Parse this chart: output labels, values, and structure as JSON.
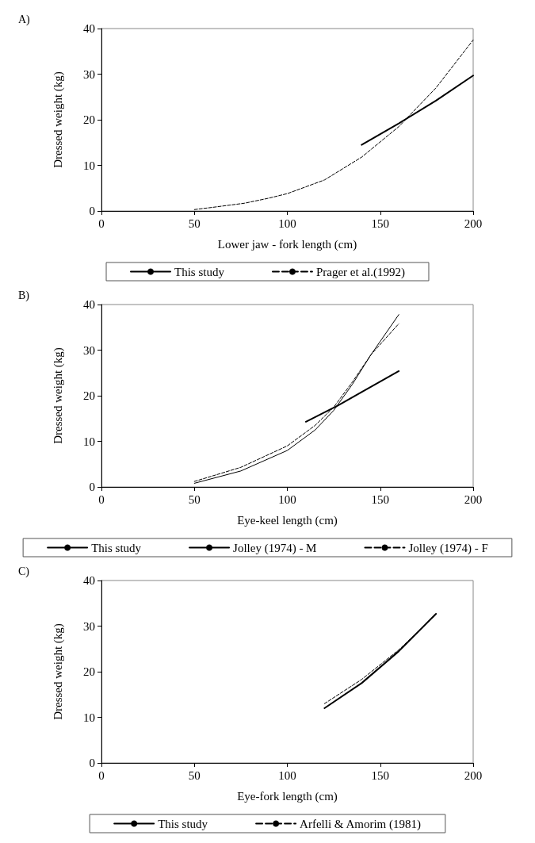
{
  "chart_data": [
    {
      "type": "line",
      "title": "A)",
      "xlabel": "Lower jaw - fork length (cm)",
      "ylabel": "Dressed weight (kg)",
      "xlim": [
        0,
        200
      ],
      "xticks": [
        0,
        50,
        100,
        150,
        200
      ],
      "ylim": [
        0,
        40
      ],
      "yticks": [
        0,
        10,
        20,
        30,
        40
      ],
      "grid": false,
      "legend": "bottom",
      "marker": "none",
      "series": [
        {
          "name": "This study",
          "color": "#000000",
          "line_style": "solid",
          "x": [
            140,
            160,
            180,
            200
          ],
          "values": [
            14.5,
            19.2,
            24.2,
            29.7
          ]
        },
        {
          "name": "Prager et al.(1992)",
          "color": "#000000",
          "line_style": "dashed",
          "x": [
            50,
            60,
            77,
            90,
            100,
            120,
            140,
            160,
            180,
            200
          ],
          "values": [
            0.3,
            0.8,
            1.7,
            2.8,
            3.8,
            6.8,
            11.8,
            18.5,
            27,
            37.5
          ]
        }
      ]
    },
    {
      "type": "line",
      "title": "B)",
      "xlabel": "Eye-keel length (cm)",
      "ylabel": "Dressed weight (kg)",
      "xlim": [
        0,
        200
      ],
      "xticks": [
        0,
        50,
        100,
        150,
        200
      ],
      "ylim": [
        0,
        40
      ],
      "yticks": [
        0,
        10,
        20,
        30,
        40
      ],
      "grid": false,
      "legend": "bottom",
      "marker": "none",
      "series": [
        {
          "name": "This study",
          "color": "#000000",
          "line_style": "solid",
          "x": [
            110,
            127,
            140,
            160
          ],
          "values": [
            14.3,
            17.8,
            20.8,
            25.4
          ]
        },
        {
          "name": "Jolley (1974) - M",
          "color": "#000000",
          "line_style": "solid",
          "x": [
            50,
            75,
            100,
            115,
            125,
            135,
            145,
            160
          ],
          "values": [
            0.8,
            3.5,
            8,
            12.5,
            16.8,
            22.5,
            29,
            37.8
          ]
        },
        {
          "name": "Jolley (1974) - F",
          "color": "#000000",
          "line_style": "dashed",
          "x": [
            50,
            75,
            100,
            115,
            125,
            135,
            145,
            160
          ],
          "values": [
            1.2,
            4.3,
            9,
            13.5,
            17.5,
            23,
            29,
            35.8
          ]
        }
      ]
    },
    {
      "type": "line",
      "title": "C)",
      "xlabel": "Eye-fork length (cm)",
      "ylabel": "Dressed weight (kg)",
      "xlim": [
        0,
        200
      ],
      "xticks": [
        0,
        50,
        100,
        150,
        200
      ],
      "ylim": [
        0,
        40
      ],
      "yticks": [
        0,
        10,
        20,
        30,
        40
      ],
      "grid": false,
      "legend": "bottom",
      "marker": "none",
      "series": [
        {
          "name": "This study",
          "color": "#000000",
          "line_style": "solid",
          "x": [
            120,
            140,
            160,
            180
          ],
          "values": [
            12,
            17.5,
            24.5,
            32.7
          ]
        },
        {
          "name": "Arfelli & Amorim (1981)",
          "color": "#000000",
          "line_style": "dashed",
          "x": [
            120,
            140,
            160,
            180
          ],
          "values": [
            13,
            18.3,
            24.8,
            32.5
          ]
        }
      ]
    }
  ]
}
